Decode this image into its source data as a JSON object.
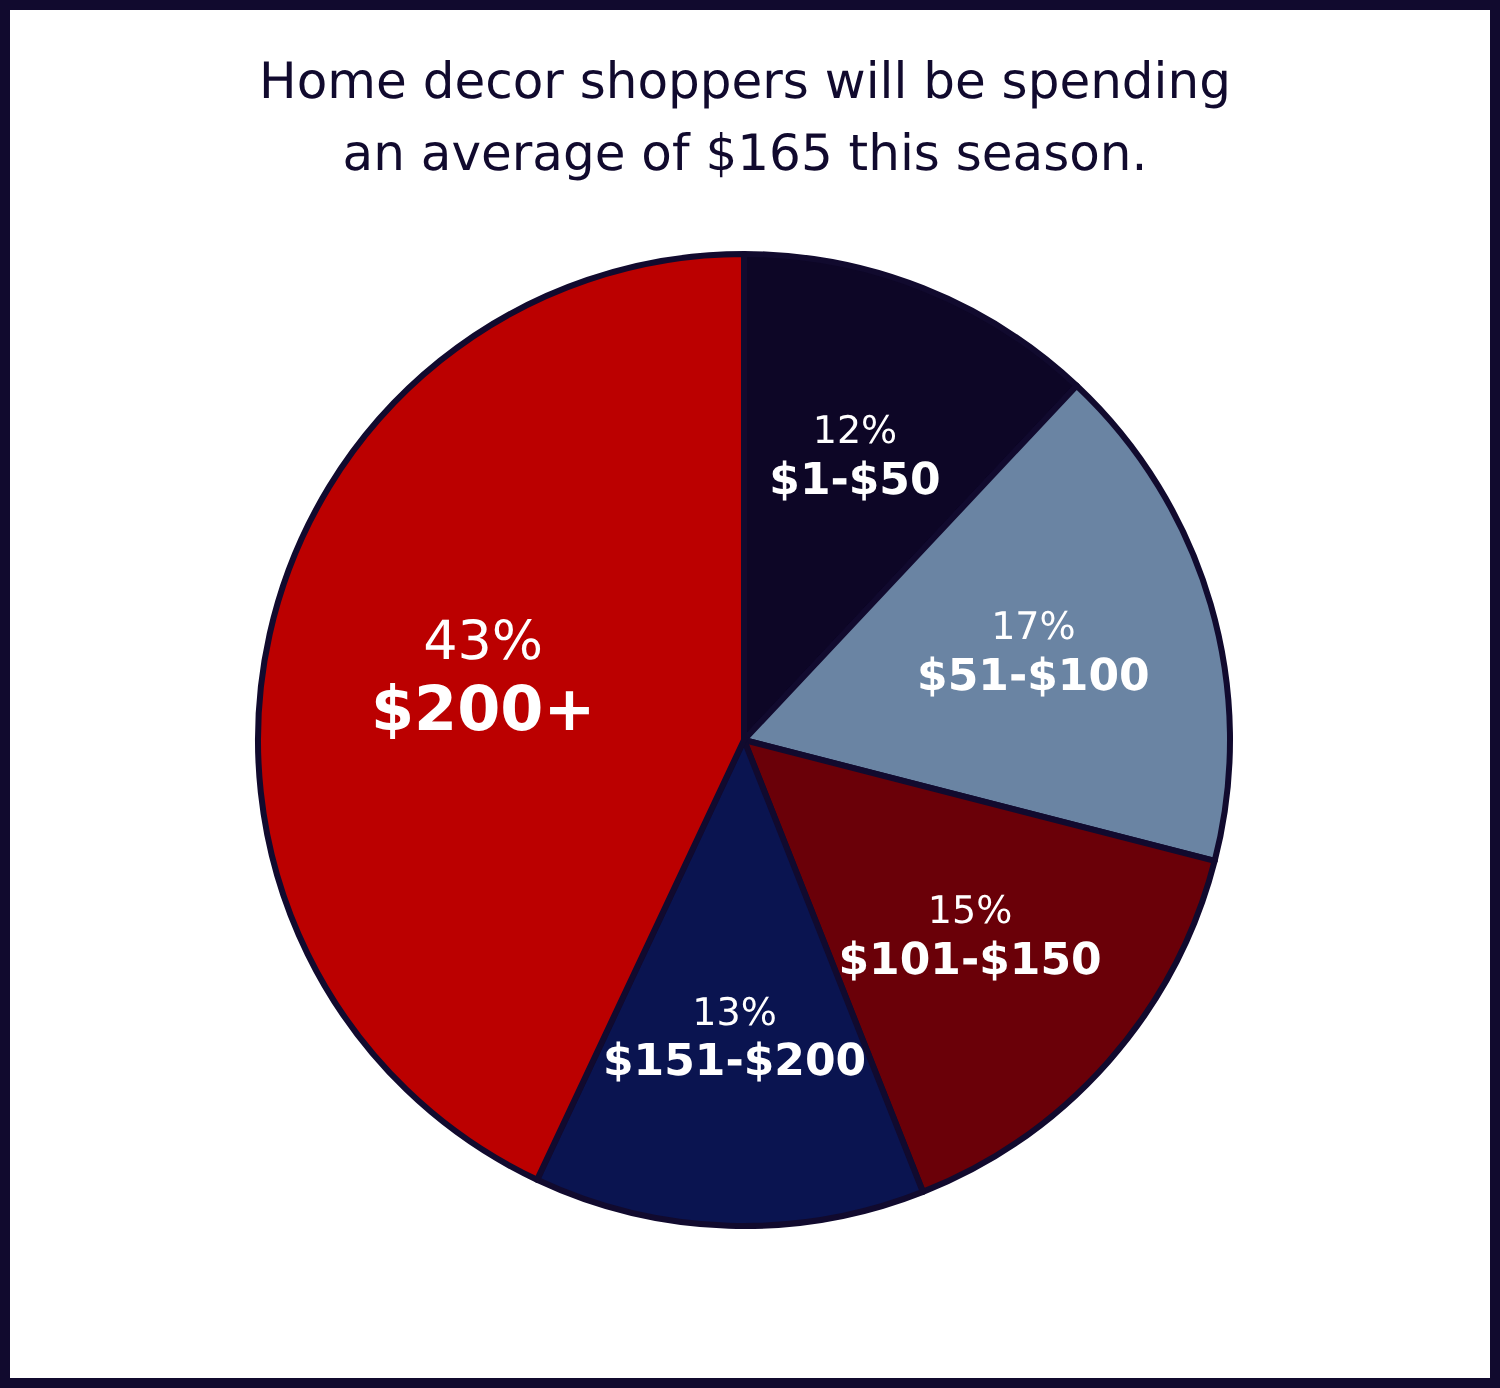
{
  "chart_data": {
    "type": "pie",
    "title": "Home decor shoppers will be spending an average of $165 this season.",
    "categories": [
      "$1-$50",
      "$51-$100",
      "$101-$150",
      "$151-$200",
      "$200+"
    ],
    "values": [
      12,
      17,
      15,
      13,
      43
    ],
    "colors": [
      "#0d0626",
      "#6a84a3",
      "#6a0008",
      "#0a1450",
      "#bb0000"
    ],
    "value_labels": [
      "12%",
      "17%",
      "15%",
      "13%",
      "43%"
    ]
  }
}
